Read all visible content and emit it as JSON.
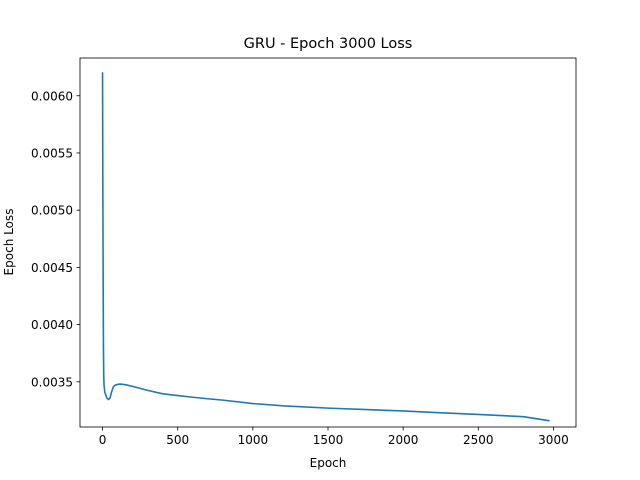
{
  "chart_data": {
    "type": "line",
    "title": "GRU - Epoch 3000 Loss",
    "xlabel": "Epoch",
    "ylabel": "Epoch Loss",
    "xlim": [
      -150,
      3150
    ],
    "ylim": [
      0.003105,
      0.00633
    ],
    "xticks": [
      0,
      500,
      1000,
      1500,
      2000,
      2500,
      3000
    ],
    "xtick_labels": [
      "0",
      "500",
      "1000",
      "1500",
      "2000",
      "2500",
      "3000"
    ],
    "yticks": [
      0.0035,
      0.004,
      0.0045,
      0.005,
      0.0055,
      0.006
    ],
    "ytick_labels": [
      "0.0035",
      "0.0040",
      "0.0045",
      "0.0050",
      "0.0055",
      "0.0060"
    ],
    "grid": false,
    "legend": "none",
    "series": [
      {
        "color": "#1f77b4",
        "x": [
          0,
          2,
          4,
          6,
          8,
          10,
          15,
          20,
          30,
          40,
          50,
          60,
          70,
          80,
          100,
          120,
          150,
          200,
          300,
          400,
          500,
          600,
          700,
          800,
          1000,
          1200,
          1500,
          1800,
          2000,
          2200,
          2500,
          2800,
          2970
        ],
        "y": [
          0.0062,
          0.0052,
          0.0044,
          0.0038,
          0.00355,
          0.00347,
          0.00341,
          0.00339,
          0.003355,
          0.003345,
          0.00336,
          0.00341,
          0.00345,
          0.003468,
          0.003478,
          0.00348,
          0.003475,
          0.00346,
          0.003425,
          0.003395,
          0.00338,
          0.003365,
          0.003352,
          0.00334,
          0.00331,
          0.00329,
          0.00327,
          0.003255,
          0.003245,
          0.003232,
          0.003215,
          0.003195,
          0.00316
        ]
      }
    ]
  }
}
